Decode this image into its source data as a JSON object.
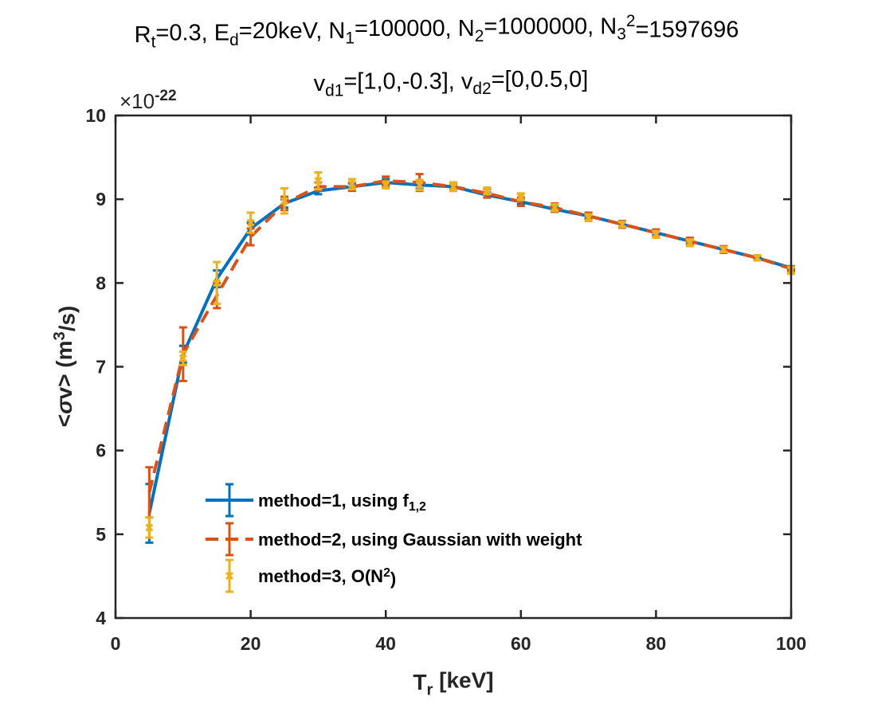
{
  "chart_data": {
    "type": "line",
    "title": {
      "line1": [
        {
          "t": "R"
        },
        {
          "t": "t",
          "sub": true
        },
        {
          "t": "=0.3, E"
        },
        {
          "t": "d",
          "sub": true
        },
        {
          "t": "=20keV, N"
        },
        {
          "t": "1",
          "sub": true
        },
        {
          "t": "=100000, N"
        },
        {
          "t": "2",
          "sub": true
        },
        {
          "t": "=1000000, N"
        },
        {
          "t": "3",
          "sub": true
        },
        {
          "t": "2",
          "sup": true
        },
        {
          "t": "=1597696"
        }
      ],
      "line2": [
        {
          "t": "v"
        },
        {
          "t": "d1",
          "sub": true
        },
        {
          "t": "=[1,0,-0.3], v"
        },
        {
          "t": "d2",
          "sub": true
        },
        {
          "t": "=[0,0.5,0]"
        }
      ]
    },
    "xlabel": [
      {
        "t": "T"
      },
      {
        "t": "r",
        "sub": true
      },
      {
        "t": " [keV]"
      }
    ],
    "ylabel": [
      {
        "t": "<"
      },
      {
        "t": "σ",
        "italic": true
      },
      {
        "t": "v> (m"
      },
      {
        "t": "3",
        "sup": true
      },
      {
        "t": "/s)"
      }
    ],
    "y_exponent": {
      "base": "×10",
      "exp": "-22"
    },
    "xlim": [
      0,
      100
    ],
    "ylim": [
      4,
      10
    ],
    "xticks": [
      0,
      20,
      40,
      60,
      80,
      100
    ],
    "yticks": [
      4,
      5,
      6,
      7,
      8,
      9,
      10
    ],
    "grid": false,
    "legend_position": "lower-left",
    "x": [
      5,
      10,
      15,
      20,
      25,
      30,
      35,
      40,
      45,
      50,
      55,
      60,
      65,
      70,
      75,
      80,
      85,
      90,
      95,
      100
    ],
    "series": [
      {
        "name": [
          {
            "t": "method=1, using f"
          },
          {
            "t": "1,2",
            "sub": true
          }
        ],
        "color": "#0072BD",
        "style": "solid",
        "marker": "none",
        "values": [
          5.25,
          7.15,
          8.05,
          8.65,
          8.95,
          9.1,
          9.15,
          9.2,
          9.17,
          9.15,
          9.05,
          8.97,
          8.88,
          8.8,
          8.7,
          8.6,
          8.5,
          8.4,
          8.3,
          8.18
        ],
        "errors": [
          0.35,
          0.1,
          0.1,
          0.07,
          0.05,
          0.04,
          0.04,
          0.04,
          0.04,
          0.03,
          0.03,
          0.03,
          0.03,
          0.03,
          0.03,
          0.03,
          0.03,
          0.03,
          0.02,
          0.02
        ]
      },
      {
        "name": [
          {
            "t": "method=2, using Gaussian with weight"
          }
        ],
        "color": "#D95319",
        "style": "dashed",
        "marker": "none",
        "values": [
          5.5,
          7.15,
          7.85,
          8.55,
          8.95,
          9.15,
          9.15,
          9.22,
          9.2,
          9.15,
          9.07,
          8.97,
          8.9,
          8.8,
          8.7,
          8.6,
          8.5,
          8.4,
          8.3,
          8.17
        ],
        "errors": [
          0.3,
          0.32,
          0.15,
          0.1,
          0.08,
          0.05,
          0.05,
          0.05,
          0.1,
          0.05,
          0.05,
          0.05,
          0.05,
          0.04,
          0.04,
          0.04,
          0.04,
          0.04,
          0.03,
          0.03
        ]
      },
      {
        "name": [
          {
            "t": "method=3, O(N"
          },
          {
            "t": "2",
            "sup": true
          },
          {
            "t": ")"
          }
        ],
        "color": "#EDB120",
        "style": "none",
        "marker": "x",
        "values": [
          5.08,
          7.1,
          8.0,
          8.72,
          8.98,
          9.22,
          9.18,
          9.17,
          9.17,
          9.15,
          9.1,
          9.03,
          8.9,
          8.78,
          8.7,
          8.58,
          8.48,
          8.4,
          8.3,
          8.15
        ],
        "errors": [
          0.12,
          0.08,
          0.25,
          0.12,
          0.15,
          0.1,
          0.06,
          0.04,
          0.06,
          0.05,
          0.04,
          0.04,
          0.04,
          0.04,
          0.03,
          0.04,
          0.04,
          0.03,
          0.03,
          0.04
        ]
      }
    ]
  }
}
